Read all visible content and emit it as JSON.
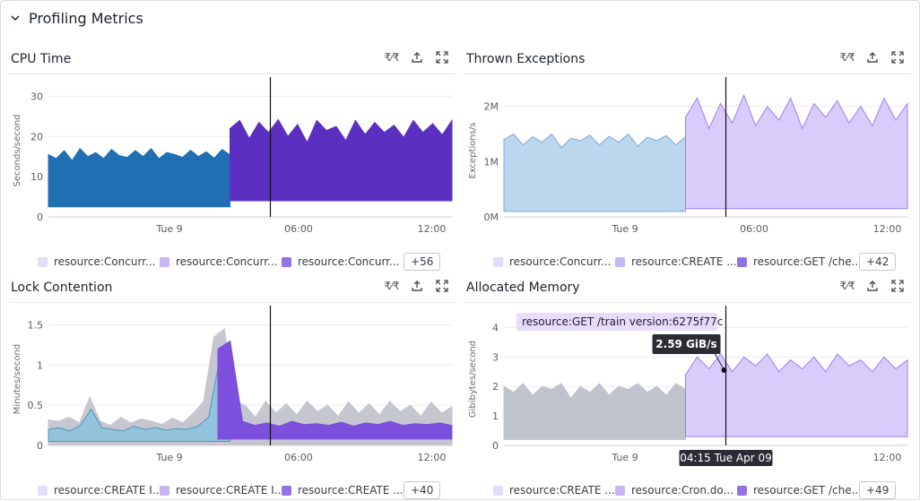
{
  "section": {
    "title": "Profiling Metrics",
    "icon": "chevron-down-icon"
  },
  "panels": [
    {
      "title": "CPU Time",
      "tools": [
        "compare-icon",
        "export-icon",
        "fullscreen-icon"
      ],
      "legend": [
        {
          "label": "resource:Concurr...",
          "color": "#e3dcfa"
        },
        {
          "label": "resource:Concurr...",
          "color": "#c6b6f3"
        },
        {
          "label": "resource:Concurr...",
          "color": "#9273e6"
        }
      ],
      "more": "+56",
      "chart_data": {
        "type": "area",
        "ylabel": "Seconds/second",
        "yticks": [
          "0",
          "10",
          "20",
          "30"
        ],
        "ylim": [
          0,
          33
        ],
        "xticks": [
          {
            "label": "Tue 9",
            "t": 0.3
          },
          {
            "label": "06:00",
            "t": 0.62
          },
          {
            "label": "12:00",
            "t": 0.95
          }
        ],
        "split": 0.45,
        "cursor": 0.55,
        "series": [
          {
            "name": "before",
            "color": "#1f6fb2",
            "range": [
              0,
              0.45
            ],
            "base": 2.5,
            "top": [
              15.5,
              14.5,
              16.5,
              14.0,
              17.0,
              15.0,
              16.0,
              14.5,
              16.8,
              15.2,
              14.8,
              16.5,
              15.0,
              17.0,
              14.5,
              16.0,
              15.5,
              14.8,
              16.6,
              15.0,
              16.2,
              14.6,
              16.8,
              15.4
            ]
          },
          {
            "name": "after",
            "color": "#5b30c0",
            "range": [
              0.45,
              1
            ],
            "base": 4.0,
            "top": [
              22.0,
              24.0,
              19.5,
              23.5,
              21.0,
              24.2,
              20.0,
              23.0,
              18.5,
              24.0,
              21.5,
              22.5,
              19.0,
              24.0,
              20.5,
              23.5,
              21.0,
              22.8,
              19.8,
              24.0,
              21.0,
              23.2,
              20.4,
              24.0
            ]
          }
        ]
      }
    },
    {
      "title": "Thrown Exceptions",
      "tools": [
        "compare-icon",
        "export-icon",
        "fullscreen-icon"
      ],
      "legend": [
        {
          "label": "resource:Concurr...",
          "color": "#e3dcfa"
        },
        {
          "label": "resource:CREATE ...",
          "color": "#c6b6f3"
        },
        {
          "label": "resource:GET /che...",
          "color": "#9273e6"
        }
      ],
      "more": "+42",
      "chart_data": {
        "type": "area",
        "ylabel": "Exceptions/s",
        "yticks": [
          "0M",
          "1M",
          "2M"
        ],
        "ylim": [
          0,
          2400000
        ],
        "xticks": [
          {
            "label": "Tue 9",
            "t": 0.3
          },
          {
            "label": "06:00",
            "t": 0.62
          },
          {
            "label": "12:00",
            "t": 0.95
          }
        ],
        "split": 0.45,
        "cursor": 0.55,
        "series": [
          {
            "name": "before",
            "color": "#bcd6ee",
            "line": "#7aa9d6",
            "range": [
              0,
              0.45
            ],
            "base": 100000,
            "top": [
              1400000,
              1500000,
              1300000,
              1450000,
              1350000,
              1500000,
              1250000,
              1420000,
              1380000,
              1480000,
              1300000,
              1460000,
              1350000,
              1500000,
              1280000,
              1440000,
              1380000,
              1470000,
              1300000,
              1450000
            ]
          },
          {
            "name": "after",
            "color": "#d9ccfb",
            "line": "#9b7ff0",
            "range": [
              0.45,
              1
            ],
            "base": 150000,
            "top": [
              1800000,
              2150000,
              1600000,
              2050000,
              1700000,
              2200000,
              1650000,
              2000000,
              1750000,
              2150000,
              1600000,
              2050000,
              1800000,
              2100000,
              1700000,
              2000000,
              1650000,
              2150000,
              1750000,
              2050000
            ]
          }
        ]
      }
    },
    {
      "title": "Lock Contention",
      "tools": [
        "compare-icon",
        "export-icon",
        "fullscreen-icon"
      ],
      "legend": [
        {
          "label": "resource:CREATE I...",
          "color": "#e3dcfa"
        },
        {
          "label": "resource:CREATE I...",
          "color": "#c6b6f3"
        },
        {
          "label": "resource:CREATE ...",
          "color": "#9273e6"
        }
      ],
      "more": "+40",
      "chart_data": {
        "type": "area",
        "ylabel": "Minutes/second",
        "yticks": [
          "0",
          "0.5",
          "1",
          "1.5"
        ],
        "ylim": [
          0,
          1.65
        ],
        "xticks": [
          {
            "label": "Tue 9",
            "t": 0.3
          },
          {
            "label": "06:00",
            "t": 0.62
          },
          {
            "label": "12:00",
            "t": 0.95
          }
        ],
        "split": 0.42,
        "cursor": 0.55,
        "series": [
          {
            "name": "gray",
            "color": "#c5c6cf",
            "range": [
              0,
              1
            ],
            "base": 0,
            "top": [
              0.32,
              0.3,
              0.35,
              0.28,
              0.6,
              0.3,
              0.25,
              0.35,
              0.28,
              0.33,
              0.3,
              0.26,
              0.34,
              0.28,
              0.4,
              0.55,
              1.35,
              1.45,
              0.55,
              0.5,
              0.35,
              0.55,
              0.4,
              0.52,
              0.38,
              0.55,
              0.42,
              0.5,
              0.36,
              0.54,
              0.4,
              0.52,
              0.38,
              0.55,
              0.42,
              0.5,
              0.36,
              0.54,
              0.4,
              0.48
            ]
          },
          {
            "name": "blue",
            "color": "#93c3dc",
            "line": "#4f94b8",
            "range": [
              0,
              0.45
            ],
            "base": 0.05,
            "top": [
              0.2,
              0.22,
              0.18,
              0.25,
              0.45,
              0.22,
              0.2,
              0.18,
              0.24,
              0.2,
              0.22,
              0.19,
              0.21,
              0.2,
              0.24,
              0.35,
              1.05,
              1.1
            ]
          },
          {
            "name": "purple",
            "color": "#7c4fdc",
            "range": [
              0.42,
              1
            ],
            "base": 0.08,
            "top": [
              1.2,
              1.3,
              0.3,
              0.25,
              0.28,
              0.24,
              0.3,
              0.26,
              0.27,
              0.25,
              0.29,
              0.24,
              0.28,
              0.26,
              0.3,
              0.25,
              0.27,
              0.26,
              0.28,
              0.25
            ]
          }
        ]
      }
    },
    {
      "title": "Allocated Memory",
      "tools": [
        "compare-icon",
        "export-icon",
        "fullscreen-icon"
      ],
      "legend": [
        {
          "label": "resource:CREATE ...",
          "color": "#e3dcfa"
        },
        {
          "label": "resource:Cron.do...",
          "color": "#c6b6f3"
        },
        {
          "label": "resource:GET /che...",
          "color": "#9273e6"
        }
      ],
      "more": "+49",
      "tooltip": {
        "series": "resource:GET /train version:6275f77c",
        "value": "2.59 GiB/s",
        "time": "04:15 Tue Apr 09"
      },
      "chart_data": {
        "type": "area",
        "ylabel": "Gibibytes/second",
        "yticks": [
          "0",
          "1",
          "2",
          "3",
          "4"
        ],
        "ylim": [
          0,
          4.5
        ],
        "xticks": [
          {
            "label": "Tue 9",
            "t": 0.3
          },
          {
            "label": "06:00",
            "t": 0.62
          },
          {
            "label": "12:00",
            "t": 0.95
          }
        ],
        "split": 0.45,
        "cursor": 0.55,
        "series": [
          {
            "name": "before",
            "color": "#bfc3cc",
            "range": [
              0,
              0.45
            ],
            "base": 0.2,
            "top": [
              2.0,
              1.8,
              2.1,
              1.7,
              2.0,
              1.9,
              2.1,
              1.6,
              2.0,
              1.8,
              2.1,
              1.7,
              2.0,
              1.9,
              2.1,
              1.8,
              2.0,
              1.7,
              2.1,
              1.9
            ]
          },
          {
            "name": "after",
            "color": "#d9ccfb",
            "line": "#9b7ff0",
            "range": [
              0.45,
              1
            ],
            "base": 0.3,
            "top": [
              2.4,
              3.0,
              2.6,
              3.1,
              2.5,
              3.0,
              2.7,
              3.1,
              2.5,
              2.9,
              2.6,
              3.0,
              2.5,
              3.1,
              2.7,
              2.9,
              2.5,
              3.0,
              2.6,
              2.9
            ]
          }
        ]
      }
    }
  ]
}
